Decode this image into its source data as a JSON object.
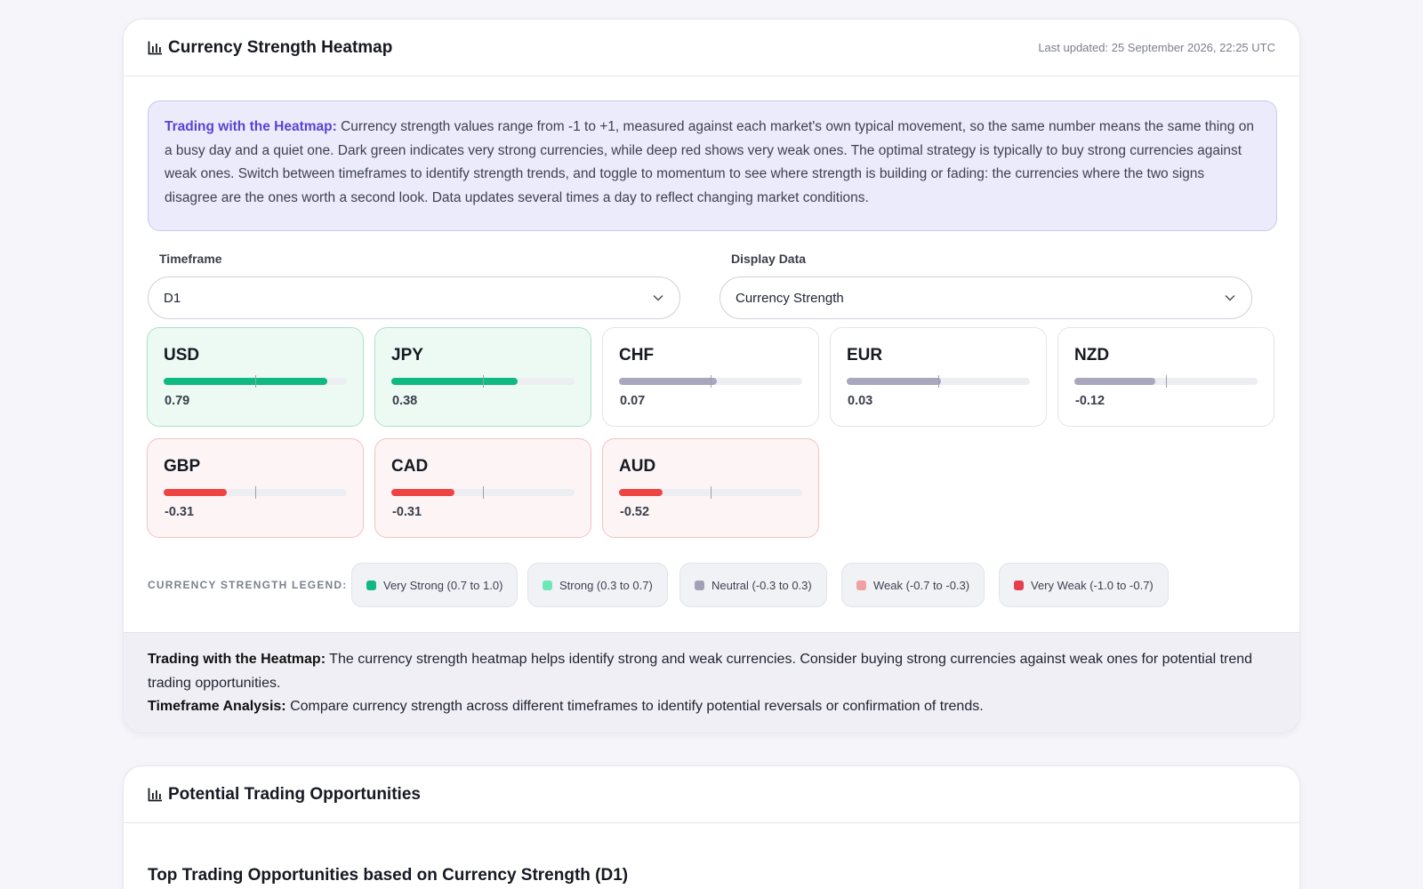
{
  "heatmap": {
    "title": "Currency Strength Heatmap",
    "last_updated": "Last updated: 25 September 2026, 22:25 UTC",
    "info": {
      "heading": "Trading with the Heatmap:",
      "text": " Currency strength values range from -1 to +1, measured against each market's own typical movement, so the same number means the same thing on a busy day and a quiet one. Dark green indicates very strong currencies, while deep red shows very weak ones. The optimal strategy is typically to buy strong currencies against weak ones. Switch between timeframes to identify strength trends, and toggle to momentum to see where strength is building or fading: the currencies where the two signs disagree are the ones worth a second look. Data updates several times a day to reflect changing market conditions."
    },
    "timeframe": {
      "label": "Timeframe",
      "value": "D1"
    },
    "display_data": {
      "label": "Display Data",
      "value": "Currency Strength"
    },
    "currencies": [
      {
        "code": "USD",
        "value": "0.79",
        "level": 0.79,
        "class": "strong",
        "color": "#10b981"
      },
      {
        "code": "JPY",
        "value": "0.38",
        "level": 0.38,
        "class": "strong",
        "color": "#10b981"
      },
      {
        "code": "CHF",
        "value": "0.07",
        "level": 0.07,
        "class": "neutral",
        "color": "#a9a7bd"
      },
      {
        "code": "EUR",
        "value": "0.03",
        "level": 0.03,
        "class": "neutral",
        "color": "#a9a7bd"
      },
      {
        "code": "NZD",
        "value": "-0.12",
        "level": -0.12,
        "class": "neutral",
        "color": "#a9a7bd"
      },
      {
        "code": "GBP",
        "value": "-0.31",
        "level": -0.31,
        "class": "weak",
        "color": "#ef4444"
      },
      {
        "code": "CAD",
        "value": "-0.31",
        "level": -0.31,
        "class": "weak",
        "color": "#ef4444"
      },
      {
        "code": "AUD",
        "value": "-0.52",
        "level": -0.52,
        "class": "weak",
        "color": "#ef4444"
      }
    ],
    "legend": {
      "label": "CURRENCY STRENGTH LEGEND:",
      "items": [
        {
          "label": "Very Strong (0.7 to 1.0)",
          "color": "#10b981"
        },
        {
          "label": "Strong (0.3 to 0.7)",
          "color": "#6ee7b7"
        },
        {
          "label": "Neutral (-0.3 to 0.3)",
          "color": "#a1a1b5"
        },
        {
          "label": "Weak (-0.7 to -0.3)",
          "color": "#f0a0a0"
        },
        {
          "label": "Very Weak (-1.0 to -0.7)",
          "color": "#e53e4f"
        }
      ]
    },
    "tips": {
      "heatmap_heading": "Trading with the Heatmap:",
      "heatmap_text": " The currency strength heatmap helps identify strong and weak currencies. Consider buying strong currencies against weak ones for potential trend trading opportunities.",
      "timeframe_heading": "Timeframe Analysis:",
      "timeframe_text": " Compare currency strength across different timeframes to identify potential reversals or confirmation of trends."
    }
  },
  "opportunities": {
    "title": "Potential Trading Opportunities",
    "subtitle": "Top Trading Opportunities based on Currency Strength (D1)"
  }
}
